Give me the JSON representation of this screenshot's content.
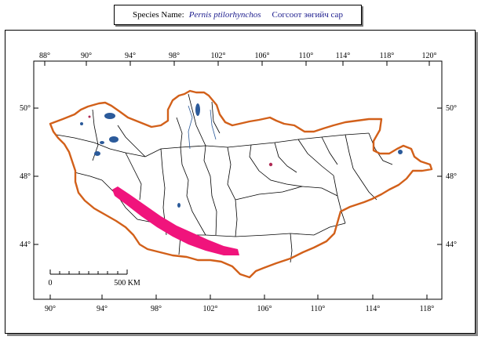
{
  "header": {
    "species_label": "Species Name:",
    "species_scientific": "Pernis ptilorhynchos",
    "species_local": "Согсоот зөгийч сар"
  },
  "map": {
    "top_longitudes": [
      "88°",
      "90°",
      "94°",
      "98°",
      "102°",
      "106°",
      "110°",
      "114°",
      "118°",
      "120°"
    ],
    "bottom_longitudes": [
      "90°",
      "94°",
      "98°",
      "102°",
      "106°",
      "110°",
      "114°",
      "118°"
    ],
    "left_latitudes": [
      "50°",
      "48°",
      "44°"
    ],
    "right_latitudes": [
      "50°",
      "48°",
      "44°"
    ],
    "scale_bar": {
      "zero_label": "0",
      "distance_label": "500 KM"
    },
    "colors": {
      "border": "#d2601a",
      "range": "#f0147c",
      "lakes": "#2b5a9a",
      "internal_lines": "#000000"
    }
  }
}
